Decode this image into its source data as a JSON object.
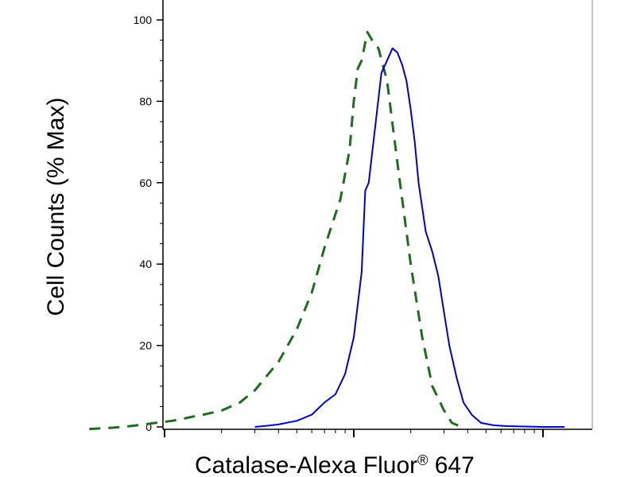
{
  "chart_data": {
    "type": "line",
    "title": "",
    "xlabel": "Catalase-Alexa Fluor",
    "xlabel_sup": "®",
    "xlabel_suffix": " 647",
    "ylabel": "Cell Counts (% Max)",
    "xscale": "log",
    "xlim": [
      0.0038,
      10
    ],
    "ylim": [
      -2,
      100
    ],
    "yticks": [
      0,
      20,
      40,
      60,
      80,
      100
    ],
    "ytick_labels": [
      "0",
      "20",
      "40",
      "60",
      "80",
      "100"
    ],
    "grid": false,
    "legend": "none",
    "series": [
      {
        "style": "dashed",
        "color": "#1f6b1f",
        "x": [
          0.004,
          0.005,
          0.006,
          0.0075,
          0.009,
          0.011,
          0.0125,
          0.014,
          0.016,
          0.02,
          0.025,
          0.03,
          0.04,
          0.05,
          0.06,
          0.07,
          0.085,
          0.095,
          0.1,
          0.105,
          0.11,
          0.118,
          0.125,
          0.135,
          0.15,
          0.17,
          0.2,
          0.23,
          0.26,
          0.3,
          0.33,
          0.37
        ],
        "y": [
          -0.5,
          -0.3,
          0,
          0.5,
          1,
          1.5,
          2,
          2.5,
          3,
          4,
          6,
          9,
          16,
          24,
          33,
          44,
          56,
          68,
          80,
          88,
          90,
          97,
          95,
          93,
          85,
          65,
          40,
          22,
          10,
          4,
          1,
          0
        ]
      },
      {
        "style": "solid",
        "color": "#0000c8",
        "x": [
          0.03,
          0.035,
          0.04,
          0.05,
          0.06,
          0.07,
          0.08,
          0.09,
          0.1,
          0.11,
          0.115,
          0.12,
          0.13,
          0.14,
          0.15,
          0.16,
          0.17,
          0.18,
          0.19,
          0.2,
          0.21,
          0.22,
          0.24,
          0.26,
          0.28,
          0.3,
          0.32,
          0.35,
          0.38,
          0.42,
          0.47,
          0.55,
          0.65,
          0.8,
          1.0,
          1.3
        ],
        "y": [
          0,
          0.3,
          0.6,
          1.5,
          3,
          6,
          8,
          13,
          22,
          38,
          58,
          60,
          74,
          87,
          90,
          93,
          92,
          89,
          85,
          78,
          70,
          60,
          48,
          43,
          37,
          28,
          20,
          12,
          6,
          3,
          1,
          0.4,
          0.2,
          0.1,
          0,
          0
        ]
      }
    ]
  }
}
